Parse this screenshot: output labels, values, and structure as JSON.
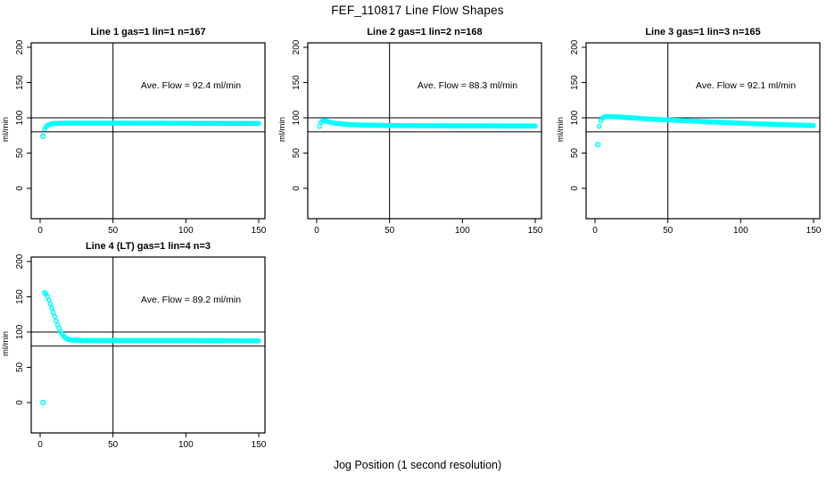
{
  "figure": {
    "title": "FEF_110817  Line Flow Shapes",
    "xlabel": "Jog Position (1 second resolution)",
    "background_color": "#ffffff",
    "point_color": "#00ffff",
    "line_color": "#000000"
  },
  "chart_data": [
    {
      "type": "scatter",
      "title": "Line 1 gas=1 lin=1 n=167",
      "annotation": "Ave. Flow =  92.4  ml/min",
      "ave_flow_ml_min": 92.4,
      "n": 167,
      "ylabel": "ml/min",
      "xlim": [
        0,
        155
      ],
      "ylim": [
        0,
        200
      ],
      "xticks": [
        0,
        50,
        100,
        150
      ],
      "yticks": [
        0,
        50,
        100,
        150,
        200
      ],
      "ref_hlines": [
        80,
        100
      ],
      "ref_vline": 50,
      "grid": false,
      "outliers": [
        [
          2,
          74
        ]
      ],
      "profile": [
        [
          3,
          84
        ],
        [
          4,
          87
        ],
        [
          5,
          89
        ],
        [
          6,
          90.3
        ],
        [
          7,
          91
        ],
        [
          8,
          91.5
        ],
        [
          10,
          92
        ],
        [
          14,
          92.3
        ],
        [
          20,
          92.5
        ],
        [
          40,
          92.5
        ],
        [
          80,
          92.4
        ],
        [
          120,
          92.2
        ],
        [
          150,
          92
        ]
      ]
    },
    {
      "type": "scatter",
      "title": "Line 2 gas=1 lin=2 n=168",
      "annotation": "Ave. Flow =  88.3  ml/min",
      "ave_flow_ml_min": 88.3,
      "n": 168,
      "ylabel": "ml/min",
      "xlim": [
        0,
        155
      ],
      "ylim": [
        0,
        200
      ],
      "xticks": [
        0,
        50,
        100,
        150
      ],
      "yticks": [
        0,
        50,
        100,
        150,
        200
      ],
      "ref_hlines": [
        80,
        100
      ],
      "ref_vline": 50,
      "grid": false,
      "outliers": [],
      "profile": [
        [
          2,
          88
        ],
        [
          3,
          93.5
        ],
        [
          4,
          95.5
        ],
        [
          5,
          96
        ],
        [
          6,
          95.5
        ],
        [
          8,
          94.3
        ],
        [
          10,
          93.3
        ],
        [
          14,
          92
        ],
        [
          20,
          90.8
        ],
        [
          30,
          89.8
        ],
        [
          45,
          89.2
        ],
        [
          70,
          88.8
        ],
        [
          100,
          88.6
        ],
        [
          150,
          88.5
        ]
      ]
    },
    {
      "type": "scatter",
      "title": "Line 3 gas=1 lin=3 n=165",
      "annotation": "Ave. Flow =  92.1  ml/min",
      "ave_flow_ml_min": 92.1,
      "n": 165,
      "ylabel": "ml/min",
      "xlim": [
        0,
        155
      ],
      "ylim": [
        0,
        200
      ],
      "xticks": [
        0,
        50,
        100,
        150
      ],
      "yticks": [
        0,
        50,
        100,
        150,
        200
      ],
      "ref_hlines": [
        80,
        100
      ],
      "ref_vline": 50,
      "grid": false,
      "outliers": [
        [
          2,
          62
        ]
      ],
      "profile": [
        [
          3,
          88
        ],
        [
          4,
          96
        ],
        [
          5,
          99.5
        ],
        [
          6,
          101
        ],
        [
          8,
          101.8
        ],
        [
          12,
          101.8
        ],
        [
          16,
          101.3
        ],
        [
          20,
          100.6
        ],
        [
          25,
          100
        ],
        [
          30,
          99.2
        ],
        [
          40,
          98
        ],
        [
          50,
          97
        ],
        [
          60,
          96
        ],
        [
          75,
          94.6
        ],
        [
          90,
          93.3
        ],
        [
          105,
          92
        ],
        [
          120,
          91
        ],
        [
          135,
          90
        ],
        [
          150,
          89
        ]
      ]
    },
    {
      "type": "scatter",
      "title": "Line 4 (LT) gas=1 lin=4 n=3",
      "annotation": "Ave. Flow =  89.2  ml/min",
      "ave_flow_ml_min": 89.2,
      "n": 3,
      "ylabel": "ml/min",
      "xlim": [
        0,
        155
      ],
      "ylim": [
        0,
        200
      ],
      "xticks": [
        0,
        50,
        100,
        150
      ],
      "yticks": [
        0,
        50,
        100,
        150,
        200
      ],
      "ref_hlines": [
        80,
        100
      ],
      "ref_vline": 50,
      "grid": false,
      "outliers": [
        [
          2,
          0
        ]
      ],
      "profile": [
        [
          3,
          156
        ],
        [
          4,
          154
        ],
        [
          5,
          150.5
        ],
        [
          6,
          145.5
        ],
        [
          7,
          140
        ],
        [
          8,
          134
        ],
        [
          9,
          128
        ],
        [
          10,
          122
        ],
        [
          11,
          116
        ],
        [
          12,
          110.5
        ],
        [
          13,
          105.5
        ],
        [
          14,
          101
        ],
        [
          15,
          97.5
        ],
        [
          16,
          94.5
        ],
        [
          17,
          92.5
        ],
        [
          18,
          91
        ],
        [
          19,
          90
        ],
        [
          20,
          89.3
        ],
        [
          22,
          88.6
        ],
        [
          25,
          88.2
        ],
        [
          30,
          88
        ],
        [
          60,
          88
        ],
        [
          100,
          88
        ],
        [
          150,
          87.5
        ]
      ]
    }
  ]
}
